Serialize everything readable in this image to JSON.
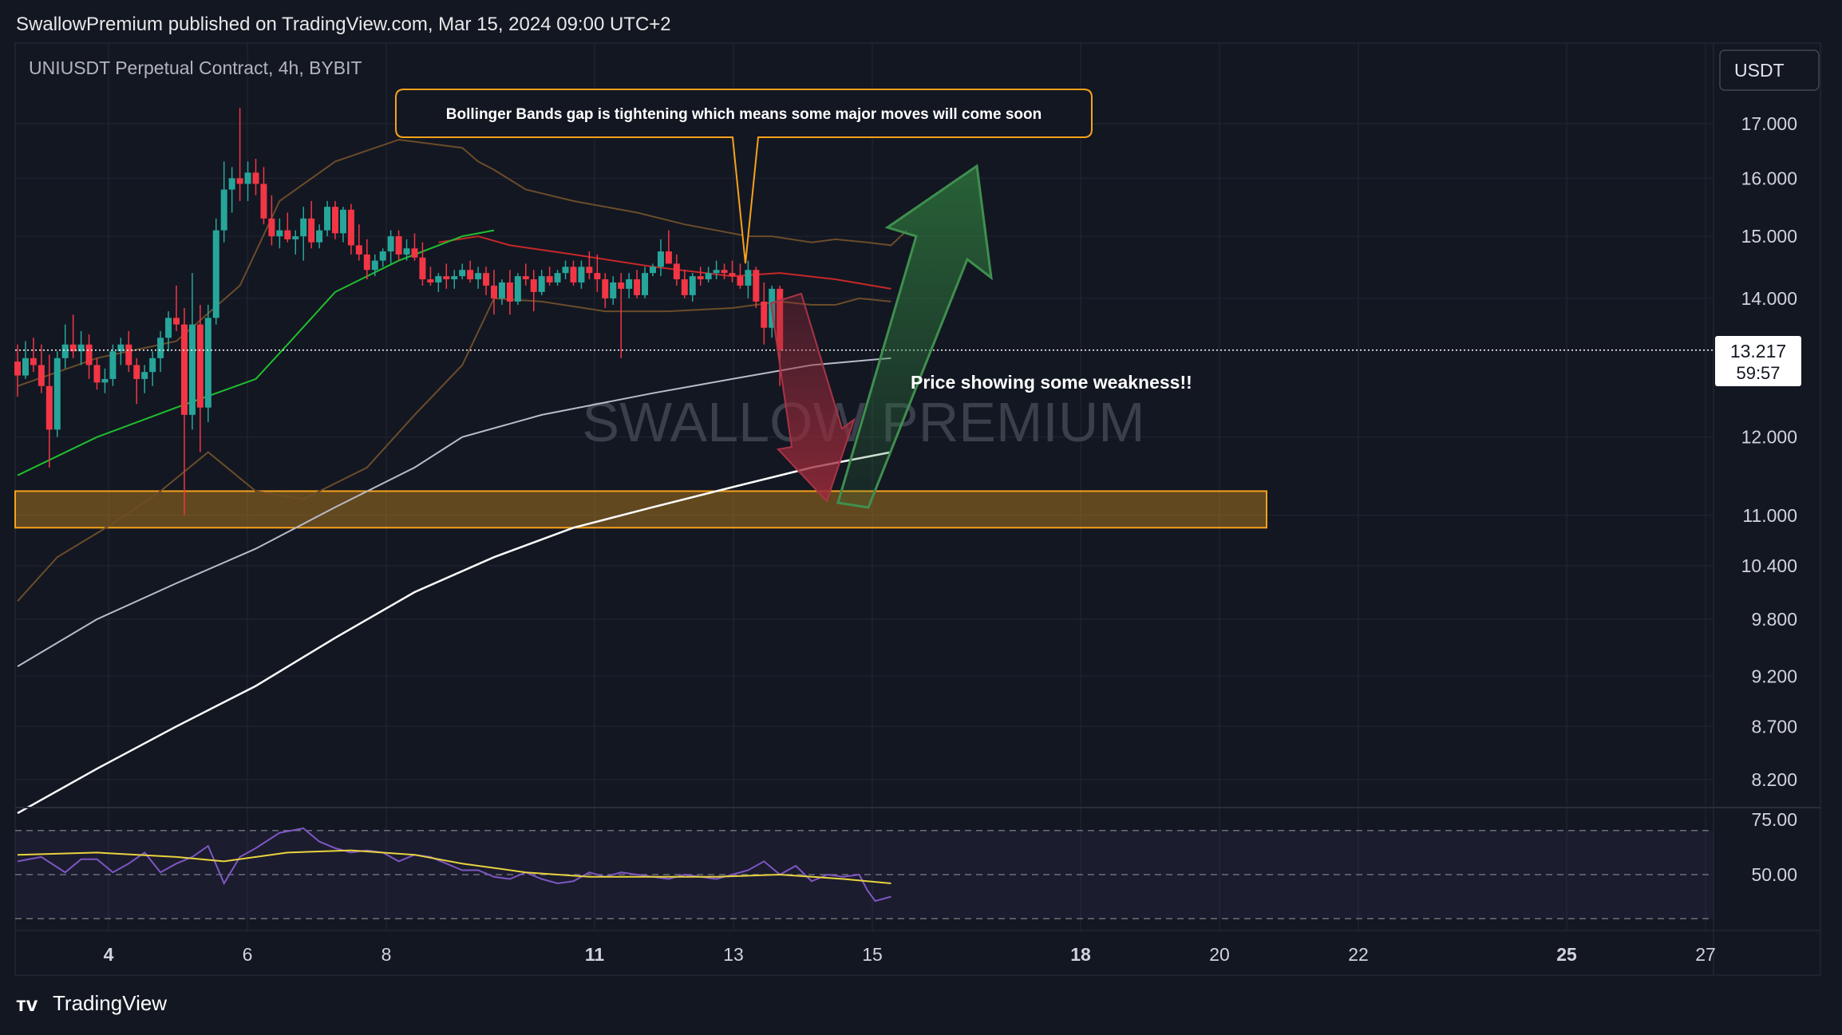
{
  "header": {
    "publish_line": "SwallowPremium published on TradingView.com, Mar 15, 2024 09:00 UTC+2"
  },
  "chart": {
    "symbol_title": "UNIUSDT Perpetual Contract, 4h, BYBIT",
    "currency_button": "USDT",
    "watermark": "SWALLOW PREMIUM",
    "annotation_bbands": "Bollinger Bands gap is tightening which means some major moves will come soon",
    "annotation_weakness": "Price showing some weakness!!",
    "price_label": "13.217",
    "countdown_label": "59:57"
  },
  "footer": {
    "brand": "TradingView"
  },
  "colors": {
    "background": "#131722",
    "up_candle": "#26a69a",
    "down_candle": "#f23645",
    "support_zone": "#f7a21b",
    "rsi_line": "#7e57c2",
    "rsi_ma": "#e8d33f",
    "arrow_up": "#2e6b3a",
    "arrow_down": "#8c2b3a"
  },
  "chart_data": {
    "type": "candlestick",
    "price_axis": {
      "ticks": [
        "17.000",
        "16.000",
        "15.000",
        "14.000",
        "12.000",
        "11.000",
        "10.400",
        "9.800",
        "9.200",
        "8.700",
        "8.200"
      ],
      "tick_values": [
        17.0,
        16.0,
        15.0,
        14.0,
        12.0,
        11.0,
        10.4,
        9.8,
        9.2,
        8.7,
        8.2
      ],
      "scale": "log"
    },
    "time_axis": {
      "ticks": [
        "4",
        "6",
        "8",
        "11",
        "13",
        "15",
        "18",
        "20",
        "22",
        "25",
        "27"
      ],
      "bold": [
        "4",
        "11",
        "18",
        "25"
      ]
    },
    "rsi_axis": {
      "ticks": [
        "75.00",
        "50.00"
      ],
      "tick_values": [
        75,
        50
      ],
      "bands": [
        70,
        50,
        30
      ]
    },
    "last_price": 13.217,
    "support_zone": [
      10.85,
      11.3
    ],
    "candles": [
      [
        13.05,
        13.3,
        12.55,
        12.85
      ],
      [
        12.85,
        13.35,
        12.8,
        13.1
      ],
      [
        13.1,
        13.4,
        12.9,
        13.0
      ],
      [
        13.0,
        13.3,
        12.6,
        12.7
      ],
      [
        12.7,
        13.15,
        11.6,
        12.1
      ],
      [
        12.1,
        13.2,
        12.0,
        13.1
      ],
      [
        13.1,
        13.6,
        12.95,
        13.3
      ],
      [
        13.3,
        13.75,
        13.1,
        13.2
      ],
      [
        13.2,
        13.5,
        13.0,
        13.3
      ],
      [
        13.3,
        13.45,
        12.8,
        13.0
      ],
      [
        13.0,
        13.1,
        12.65,
        12.75
      ],
      [
        12.75,
        12.95,
        12.6,
        12.8
      ],
      [
        12.8,
        13.3,
        12.7,
        13.2
      ],
      [
        13.2,
        13.4,
        13.0,
        13.3
      ],
      [
        13.3,
        13.5,
        12.9,
        13.0
      ],
      [
        13.0,
        13.1,
        12.45,
        12.8
      ],
      [
        12.8,
        13.0,
        12.6,
        12.9
      ],
      [
        12.9,
        13.2,
        12.7,
        13.1
      ],
      [
        13.1,
        13.5,
        12.9,
        13.4
      ],
      [
        13.4,
        13.8,
        13.2,
        13.7
      ],
      [
        13.7,
        14.2,
        13.5,
        13.6
      ],
      [
        13.6,
        13.85,
        11.0,
        12.3
      ],
      [
        12.3,
        14.4,
        12.1,
        13.6
      ],
      [
        13.6,
        13.9,
        11.8,
        12.4
      ],
      [
        12.4,
        13.9,
        12.2,
        13.7
      ],
      [
        13.7,
        15.3,
        13.6,
        15.1
      ],
      [
        15.1,
        16.3,
        14.9,
        15.8
      ],
      [
        15.8,
        16.2,
        15.4,
        16.0
      ],
      [
        16.0,
        17.3,
        15.6,
        15.9
      ],
      [
        15.9,
        16.3,
        15.6,
        16.1
      ],
      [
        16.1,
        16.35,
        15.7,
        15.9
      ],
      [
        15.9,
        16.2,
        15.2,
        15.3
      ],
      [
        15.3,
        15.7,
        14.85,
        15.0
      ],
      [
        15.0,
        15.3,
        14.8,
        15.1
      ],
      [
        15.1,
        15.4,
        14.9,
        14.95
      ],
      [
        14.95,
        15.1,
        14.7,
        15.0
      ],
      [
        15.0,
        15.5,
        14.6,
        15.3
      ],
      [
        15.3,
        15.6,
        14.8,
        14.9
      ],
      [
        14.9,
        15.2,
        14.8,
        15.1
      ],
      [
        15.1,
        15.6,
        15.0,
        15.5
      ],
      [
        15.5,
        15.6,
        14.95,
        15.05
      ],
      [
        15.05,
        15.5,
        14.9,
        15.45
      ],
      [
        15.45,
        15.55,
        14.7,
        14.85
      ],
      [
        14.85,
        15.2,
        14.6,
        14.7
      ],
      [
        14.7,
        14.95,
        14.3,
        14.45
      ],
      [
        14.45,
        14.7,
        14.35,
        14.6
      ],
      [
        14.6,
        14.8,
        14.5,
        14.75
      ],
      [
        14.75,
        15.1,
        14.55,
        15.0
      ],
      [
        15.0,
        15.1,
        14.6,
        14.7
      ],
      [
        14.7,
        14.95,
        14.6,
        14.8
      ],
      [
        14.8,
        15.05,
        14.6,
        14.65
      ],
      [
        14.65,
        14.9,
        14.2,
        14.3
      ],
      [
        14.3,
        14.5,
        14.2,
        14.25
      ],
      [
        14.25,
        14.4,
        14.1,
        14.35
      ],
      [
        14.35,
        14.55,
        14.15,
        14.3
      ],
      [
        14.3,
        14.45,
        14.15,
        14.35
      ],
      [
        14.35,
        14.55,
        14.3,
        14.45
      ],
      [
        14.45,
        14.6,
        14.25,
        14.3
      ],
      [
        14.3,
        14.5,
        14.15,
        14.4
      ],
      [
        14.4,
        14.5,
        14.05,
        14.2
      ],
      [
        14.2,
        14.45,
        13.75,
        14.0
      ],
      [
        14.0,
        14.3,
        13.9,
        14.25
      ],
      [
        14.25,
        14.45,
        13.75,
        13.95
      ],
      [
        13.95,
        14.4,
        13.9,
        14.35
      ],
      [
        14.35,
        14.55,
        14.2,
        14.3
      ],
      [
        14.3,
        14.45,
        13.8,
        14.1
      ],
      [
        14.1,
        14.45,
        14.05,
        14.35
      ],
      [
        14.35,
        14.5,
        14.2,
        14.25
      ],
      [
        14.25,
        14.45,
        14.2,
        14.4
      ],
      [
        14.4,
        14.6,
        14.3,
        14.5
      ],
      [
        14.5,
        14.6,
        14.2,
        14.25
      ],
      [
        14.25,
        14.6,
        14.15,
        14.5
      ],
      [
        14.5,
        14.75,
        14.3,
        14.4
      ],
      [
        14.4,
        14.7,
        14.1,
        14.3
      ],
      [
        14.3,
        14.4,
        13.85,
        14.0
      ],
      [
        14.0,
        14.35,
        13.9,
        14.25
      ],
      [
        14.25,
        14.4,
        13.1,
        14.15
      ],
      [
        14.15,
        14.4,
        14.0,
        14.3
      ],
      [
        14.3,
        14.45,
        14.0,
        14.05
      ],
      [
        14.05,
        14.5,
        14.0,
        14.4
      ],
      [
        14.4,
        14.55,
        14.35,
        14.5
      ],
      [
        14.5,
        14.95,
        14.35,
        14.75
      ],
      [
        14.75,
        15.1,
        14.6,
        14.55
      ],
      [
        14.55,
        14.7,
        14.2,
        14.3
      ],
      [
        14.3,
        14.45,
        14.0,
        14.05
      ],
      [
        14.05,
        14.4,
        13.95,
        14.35
      ],
      [
        14.35,
        14.5,
        14.2,
        14.3
      ],
      [
        14.3,
        14.5,
        14.25,
        14.4
      ],
      [
        14.4,
        14.6,
        14.3,
        14.45
      ],
      [
        14.45,
        14.55,
        14.3,
        14.4
      ],
      [
        14.4,
        14.6,
        14.25,
        14.35
      ],
      [
        14.35,
        14.55,
        14.15,
        14.2
      ],
      [
        14.2,
        14.6,
        14.0,
        14.45
      ],
      [
        14.45,
        14.5,
        13.85,
        13.95
      ],
      [
        13.95,
        14.25,
        13.3,
        13.55
      ],
      [
        13.55,
        14.2,
        13.4,
        14.15
      ],
      [
        14.15,
        14.2,
        12.7,
        13.217
      ]
    ],
    "indicators": {
      "bollinger_upper": [
        [
          0,
          12.7
        ],
        [
          10,
          13.1
        ],
        [
          20,
          13.35
        ],
        [
          28,
          14.2
        ],
        [
          33,
          15.6
        ],
        [
          40,
          16.3
        ],
        [
          48,
          16.7
        ],
        [
          56,
          16.55
        ],
        [
          58,
          16.3
        ],
        [
          60,
          16.15
        ],
        [
          64,
          15.8
        ],
        [
          70,
          15.6
        ],
        [
          78,
          15.4
        ],
        [
          84,
          15.2
        ],
        [
          92,
          15.0
        ],
        [
          95,
          15.0
        ],
        [
          100,
          14.9
        ],
        [
          103,
          14.95
        ],
        [
          107,
          14.9
        ],
        [
          110,
          14.85
        ],
        [
          112,
          15.1
        ]
      ],
      "bollinger_basis": [
        [
          53,
          14.9
        ],
        [
          58,
          15.0
        ],
        [
          62,
          14.85
        ],
        [
          70,
          14.7
        ],
        [
          80,
          14.5
        ],
        [
          90,
          14.35
        ],
        [
          96,
          14.4
        ],
        [
          103,
          14.3
        ],
        [
          110,
          14.15
        ]
      ],
      "bollinger_lower": [
        [
          0,
          10.0
        ],
        [
          5,
          10.5
        ],
        [
          12,
          10.9
        ],
        [
          18,
          11.3
        ],
        [
          24,
          11.8
        ],
        [
          30,
          11.3
        ],
        [
          36,
          11.2
        ],
        [
          44,
          11.6
        ],
        [
          50,
          12.3
        ],
        [
          56,
          13.0
        ],
        [
          60,
          14.0
        ],
        [
          66,
          13.95
        ],
        [
          74,
          13.8
        ],
        [
          82,
          13.8
        ],
        [
          90,
          13.85
        ],
        [
          96,
          13.95
        ],
        [
          100,
          13.9
        ],
        [
          103,
          13.9
        ],
        [
          106,
          14.0
        ],
        [
          110,
          13.95
        ]
      ],
      "ema_green": [
        [
          0,
          11.5
        ],
        [
          10,
          12.0
        ],
        [
          20,
          12.4
        ],
        [
          30,
          12.8
        ],
        [
          34,
          13.3
        ],
        [
          40,
          14.1
        ],
        [
          48,
          14.6
        ],
        [
          56,
          15.0
        ],
        [
          60,
          15.1
        ]
      ],
      "ma_gray": [
        [
          0,
          9.3
        ],
        [
          10,
          9.8
        ],
        [
          20,
          10.2
        ],
        [
          30,
          10.6
        ],
        [
          40,
          11.1
        ],
        [
          50,
          11.6
        ],
        [
          56,
          12.0
        ],
        [
          66,
          12.3
        ],
        [
          80,
          12.6
        ],
        [
          90,
          12.8
        ],
        [
          100,
          13.0
        ],
        [
          110,
          13.1
        ]
      ],
      "ma_white": [
        [
          0,
          7.9
        ],
        [
          10,
          8.3
        ],
        [
          20,
          8.7
        ],
        [
          30,
          9.1
        ],
        [
          40,
          9.6
        ],
        [
          50,
          10.1
        ],
        [
          60,
          10.5
        ],
        [
          70,
          10.85
        ],
        [
          80,
          11.1
        ],
        [
          90,
          11.35
        ],
        [
          100,
          11.6
        ],
        [
          110,
          11.8
        ]
      ],
      "rsi": [
        [
          0,
          56
        ],
        [
          3,
          58
        ],
        [
          6,
          51
        ],
        [
          8,
          57
        ],
        [
          10,
          57
        ],
        [
          12,
          51
        ],
        [
          14,
          55
        ],
        [
          16,
          60
        ],
        [
          18,
          51
        ],
        [
          20,
          55
        ],
        [
          22,
          58
        ],
        [
          24,
          63
        ],
        [
          26,
          46
        ],
        [
          28,
          58
        ],
        [
          30,
          62
        ],
        [
          33,
          69
        ],
        [
          36,
          71
        ],
        [
          38,
          65
        ],
        [
          40,
          62
        ],
        [
          42,
          60
        ],
        [
          44,
          61
        ],
        [
          46,
          60
        ],
        [
          48,
          56
        ],
        [
          50,
          59
        ],
        [
          52,
          58
        ],
        [
          54,
          55
        ],
        [
          56,
          52
        ],
        [
          58,
          52
        ],
        [
          60,
          49
        ],
        [
          62,
          48
        ],
        [
          64,
          51
        ],
        [
          66,
          48
        ],
        [
          68,
          46
        ],
        [
          70,
          47
        ],
        [
          72,
          51
        ],
        [
          74,
          49
        ],
        [
          76,
          51
        ],
        [
          78,
          50
        ],
        [
          80,
          49
        ],
        [
          82,
          48
        ],
        [
          84,
          50
        ],
        [
          86,
          49
        ],
        [
          88,
          48
        ],
        [
          90,
          50
        ],
        [
          92,
          52
        ],
        [
          94,
          56
        ],
        [
          96,
          50
        ],
        [
          98,
          54
        ],
        [
          100,
          47
        ],
        [
          102,
          50
        ],
        [
          104,
          49
        ],
        [
          106,
          50
        ],
        [
          107,
          43
        ],
        [
          108,
          38
        ],
        [
          110,
          40
        ]
      ],
      "rsi_ma": [
        [
          0,
          59
        ],
        [
          10,
          60
        ],
        [
          20,
          58
        ],
        [
          26,
          56
        ],
        [
          34,
          60
        ],
        [
          42,
          61
        ],
        [
          50,
          59
        ],
        [
          56,
          55
        ],
        [
          64,
          51
        ],
        [
          72,
          49
        ],
        [
          80,
          49
        ],
        [
          88,
          49
        ],
        [
          96,
          50
        ],
        [
          104,
          48
        ],
        [
          110,
          46
        ]
      ]
    }
  }
}
